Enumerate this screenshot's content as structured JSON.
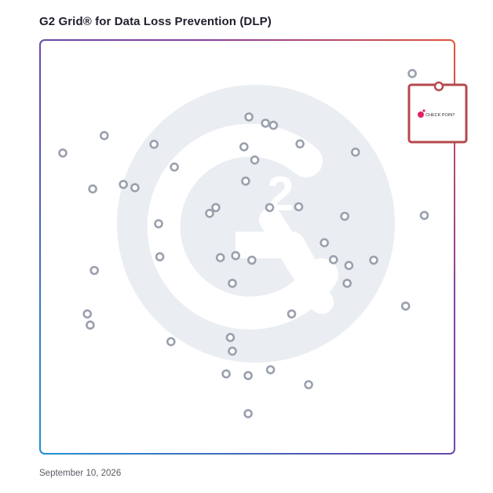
{
  "header": {
    "title": "G2 Grid® for Data Loss Prevention (DLP)"
  },
  "footer": {
    "date": "September 10, 2026"
  },
  "colors": {
    "frame_gradient": [
      "#1e90d6",
      "#5b4fb0",
      "#8a3fa0",
      "#e0563a"
    ],
    "dot": "#9aa0ad",
    "watermark": "#eaedf1",
    "highlight": "#b5484f"
  },
  "highlight": {
    "label": "CHECK POINT",
    "icon": "check-point-logo",
    "x": 91.5,
    "y": 91.4
  },
  "chart_data": {
    "type": "scatter",
    "xlim": [
      0,
      100
    ],
    "ylim": [
      0,
      100
    ],
    "grid": "quadrants",
    "points": [
      {
        "x": 89.8,
        "y": 91.9
      },
      {
        "x": 50.4,
        "y": 81.4
      },
      {
        "x": 54.4,
        "y": 79.9
      },
      {
        "x": 56.3,
        "y": 79.4
      },
      {
        "x": 15.5,
        "y": 76.9
      },
      {
        "x": 27.5,
        "y": 74.8
      },
      {
        "x": 49.2,
        "y": 74.2
      },
      {
        "x": 62.7,
        "y": 74.9
      },
      {
        "x": 5.5,
        "y": 72.7
      },
      {
        "x": 76.1,
        "y": 72.9
      },
      {
        "x": 51.8,
        "y": 71.0
      },
      {
        "x": 32.4,
        "y": 69.3
      },
      {
        "x": 49.6,
        "y": 65.9
      },
      {
        "x": 12.7,
        "y": 64.0
      },
      {
        "x": 20.1,
        "y": 65.1
      },
      {
        "x": 22.9,
        "y": 64.3
      },
      {
        "x": 42.4,
        "y": 59.5
      },
      {
        "x": 40.9,
        "y": 58.1
      },
      {
        "x": 55.4,
        "y": 59.5
      },
      {
        "x": 62.4,
        "y": 59.7
      },
      {
        "x": 73.5,
        "y": 57.4
      },
      {
        "x": 92.7,
        "y": 57.6
      },
      {
        "x": 28.6,
        "y": 55.6
      },
      {
        "x": 68.6,
        "y": 51.0
      },
      {
        "x": 28.9,
        "y": 47.6
      },
      {
        "x": 43.5,
        "y": 47.4
      },
      {
        "x": 47.2,
        "y": 47.9
      },
      {
        "x": 51.1,
        "y": 46.8
      },
      {
        "x": 70.8,
        "y": 46.9
      },
      {
        "x": 74.5,
        "y": 45.5
      },
      {
        "x": 80.5,
        "y": 46.8
      },
      {
        "x": 13.1,
        "y": 44.3
      },
      {
        "x": 46.4,
        "y": 41.2
      },
      {
        "x": 74.1,
        "y": 41.2
      },
      {
        "x": 88.2,
        "y": 35.7
      },
      {
        "x": 11.4,
        "y": 33.8
      },
      {
        "x": 60.7,
        "y": 33.8
      },
      {
        "x": 12.1,
        "y": 31.1
      },
      {
        "x": 31.6,
        "y": 27.1
      },
      {
        "x": 45.9,
        "y": 28.1
      },
      {
        "x": 46.4,
        "y": 24.8
      },
      {
        "x": 55.6,
        "y": 20.3
      },
      {
        "x": 44.9,
        "y": 19.3
      },
      {
        "x": 50.2,
        "y": 18.9
      },
      {
        "x": 64.8,
        "y": 16.7
      },
      {
        "x": 50.2,
        "y": 9.7
      }
    ]
  }
}
